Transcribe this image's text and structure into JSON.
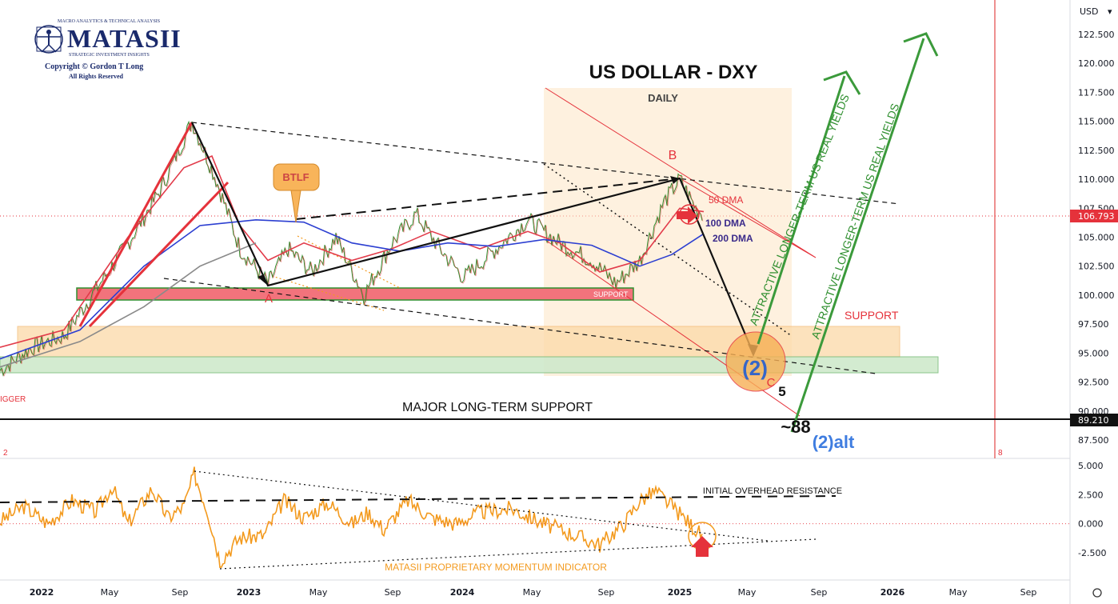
{
  "chart_data": [
    {
      "type": "line",
      "title": "US DOLLAR - DXY",
      "subtitle": "DAILY",
      "currency": "USD",
      "x_ticks": [
        "2022",
        "May",
        "Sep",
        "2023",
        "May",
        "Sep",
        "2024",
        "May",
        "Sep",
        "2025",
        "May",
        "Sep",
        "2026",
        "May",
        "Sep"
      ],
      "y_ticks": [
        "122.500",
        "120.000",
        "117.500",
        "115.000",
        "112.500",
        "110.000",
        "107.500",
        "105.000",
        "102.500",
        "100.000",
        "97.500",
        "95.000",
        "92.500",
        "90.000",
        "87.500"
      ],
      "ylim": [
        86.5,
        124.5
      ],
      "last_price": "106.793",
      "support_price": "89.210",
      "series": [
        {
          "name": "",
          "role": "price",
          "color": "#2f8f2f",
          "points": [
            [
              0,
              93.5
            ],
            [
              40,
              95.5
            ],
            [
              80,
              96.5
            ],
            [
              120,
              100.5
            ],
            [
              160,
              104.5
            ],
            [
              200,
              109
            ],
            [
              240,
              115
            ],
            [
              270,
              110
            ],
            [
              300,
              104
            ],
            [
              335,
              101
            ],
            [
              360,
              104
            ],
            [
              390,
              102
            ],
            [
              420,
              105
            ],
            [
              455,
              100
            ],
            [
              490,
              104.5
            ],
            [
              520,
              107
            ],
            [
              550,
              104
            ],
            [
              580,
              101.5
            ],
            [
              620,
              104
            ],
            [
              660,
              106.5
            ],
            [
              700,
              104.5
            ],
            [
              740,
              103
            ],
            [
              770,
              101
            ],
            [
              800,
              103
            ],
            [
              830,
              108
            ],
            [
              850,
              110
            ],
            [
              870,
              107.5
            ],
            [
              880,
              107
            ]
          ]
        },
        {
          "name": "50 DMA",
          "role": "ma",
          "color": "#e23b4a",
          "points": [
            [
              0,
              95.5
            ],
            [
              80,
              97
            ],
            [
              160,
              105
            ],
            [
              230,
              111
            ],
            [
              265,
              112
            ],
            [
              300,
              106
            ],
            [
              335,
              103
            ],
            [
              380,
              104.5
            ],
            [
              440,
              103
            ],
            [
              490,
              104
            ],
            [
              540,
              105.5
            ],
            [
              600,
              104
            ],
            [
              660,
              105.5
            ],
            [
              700,
              104.5
            ],
            [
              750,
              102
            ],
            [
              800,
              103
            ],
            [
              850,
              107.5
            ],
            [
              880,
              107.2
            ]
          ]
        },
        {
          "name": "100 DMA",
          "role": "ma",
          "color": "#2c3fd1",
          "points": [
            [
              0,
              94.5
            ],
            [
              100,
              97
            ],
            [
              180,
              102.5
            ],
            [
              250,
              106
            ],
            [
              320,
              106.5
            ],
            [
              380,
              106.3
            ],
            [
              440,
              104.5
            ],
            [
              500,
              103.8
            ],
            [
              560,
              104.5
            ],
            [
              620,
              104.2
            ],
            [
              680,
              104.8
            ],
            [
              740,
              104.3
            ],
            [
              800,
              102.5
            ],
            [
              840,
              103.5
            ],
            [
              880,
              105.3
            ]
          ]
        },
        {
          "name": "200 DMA",
          "role": "ma",
          "color": "#8a8a8a",
          "points": [
            [
              0,
              93.8
            ],
            [
              100,
              96
            ],
            [
              180,
              99
            ],
            [
              250,
              102.5
            ],
            [
              320,
              104.5
            ]
          ]
        }
      ],
      "annotations": {
        "btlf": "BTLF",
        "wave_a": "A",
        "wave_b": "B",
        "wave_c": "C",
        "wave_2": "(2)",
        "wave_5": "5",
        "target": "~88",
        "wave_2alt": "(2)alt",
        "dma50": "50 DMA",
        "dma100": "100 DMA",
        "dma200": "200 DMA",
        "support_box": "SUPPORT",
        "support_right": "SUPPORT",
        "major_support": "MAJOR LONG-TERM SUPPORT",
        "arrow_text_1": "ATTRACTIVE LONGER-TERM US REAL YIELDS",
        "arrow_text_2": "ATTRACTIVE LONGER-TERM US REAL YIELDS",
        "trigger": "IGGER",
        "pane_left": "2",
        "pane_right": "8"
      }
    },
    {
      "type": "line",
      "title": "MATASII PROPRIETARY MOMENTUM INDICATOR",
      "resistance_label": "INITIAL OVERHEAD RESISTANCE",
      "y_ticks": [
        "5.000",
        "2.500",
        "0.000",
        "-2.500"
      ],
      "ylim": [
        -4.2,
        5.8
      ],
      "series": [
        {
          "name": "",
          "color": "#f39a1e",
          "points": [
            [
              0,
              0.2
            ],
            [
              30,
              1.5
            ],
            [
              60,
              0
            ],
            [
              90,
              2
            ],
            [
              120,
              1
            ],
            [
              140,
              3.2
            ],
            [
              160,
              0
            ],
            [
              190,
              3
            ],
            [
              210,
              0.5
            ],
            [
              230,
              1.5
            ],
            [
              243,
              4.3
            ],
            [
              260,
              1
            ],
            [
              275,
              -3.2
            ],
            [
              300,
              -1.2
            ],
            [
              330,
              -1
            ],
            [
              355,
              2
            ],
            [
              380,
              0.5
            ],
            [
              410,
              1.8
            ],
            [
              440,
              0
            ],
            [
              460,
              1
            ],
            [
              480,
              -0.5
            ],
            [
              510,
              2
            ],
            [
              540,
              0.5
            ],
            [
              570,
              0
            ],
            [
              600,
              1
            ],
            [
              640,
              1.3
            ],
            [
              680,
              0
            ],
            [
              720,
              -1
            ],
            [
              750,
              -1.8
            ],
            [
              780,
              0
            ],
            [
              800,
              2
            ],
            [
              820,
              2.8
            ],
            [
              840,
              1.5
            ],
            [
              860,
              0.2
            ],
            [
              880,
              -1.2
            ]
          ]
        }
      ]
    }
  ],
  "logo": {
    "small_top": "MACRO ANALYTICS & TECHNICAL ANALYSIS",
    "name": "MATASII",
    "sub": "STRATEGIC INVESTMENT INSIGHTS",
    "copyright": "Copyright © Gordon T Long",
    "rights": "All Rights Reserved"
  },
  "colors": {
    "price_up": "#2f8f2f",
    "ma50": "#e23b4a",
    "ma100": "#2c3fd1",
    "momentum": "#f39a1e",
    "accent_red": "#e5323b",
    "accent_green": "#3b9a3b"
  }
}
